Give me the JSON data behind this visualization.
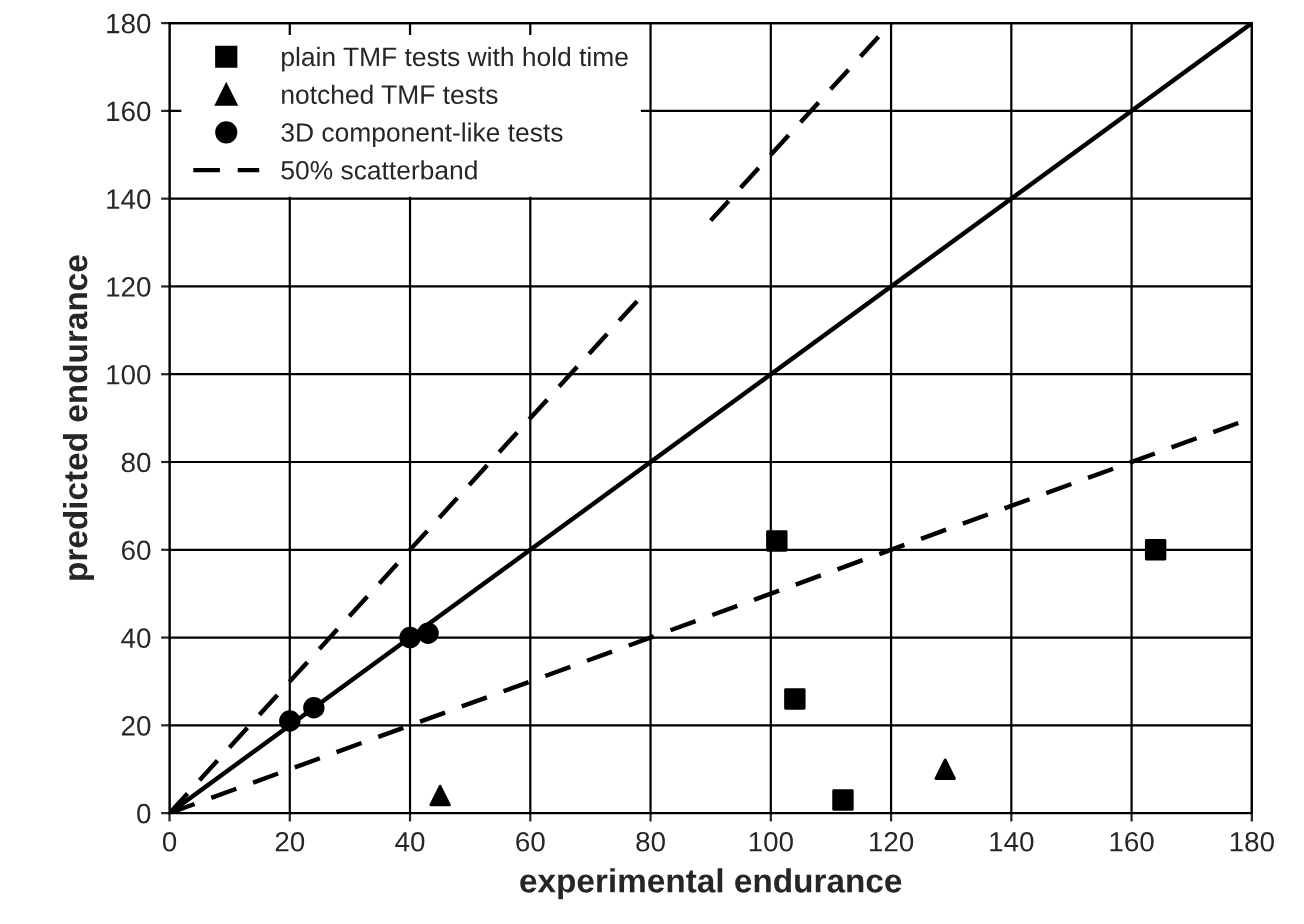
{
  "chart_data": {
    "type": "scatter",
    "xlabel": "experimental endurance",
    "ylabel": "predicted endurance",
    "xlim": [
      0,
      180
    ],
    "ylim": [
      0,
      180
    ],
    "xticks": [
      0,
      20,
      40,
      60,
      80,
      100,
      120,
      140,
      160,
      180
    ],
    "yticks": [
      0,
      20,
      40,
      60,
      80,
      100,
      120,
      140,
      160,
      180
    ],
    "grid": true,
    "legend": "top left",
    "series": [
      {
        "name": "plain TMF tests with hold time",
        "color": "#000000",
        "marker": "square",
        "x": [
          101,
          104,
          112,
          164
        ],
        "values": [
          62,
          26,
          3,
          60
        ]
      },
      {
        "name": "notched TMF tests",
        "color": "#000000",
        "marker": "triangle",
        "x": [
          45,
          129
        ],
        "values": [
          4,
          10
        ]
      },
      {
        "name": "3D component-like tests",
        "color": "#000000",
        "marker": "circle",
        "x": [
          20,
          24,
          40,
          43
        ],
        "values": [
          21,
          24,
          40,
          41
        ]
      },
      {
        "name": "50% scatterband",
        "type": "line",
        "line_style": "dashed",
        "color": "#000000",
        "marker": "none",
        "x": [
          0,
          80,
          85,
          90,
          120
        ],
        "values": [
          0,
          120,
          null,
          135,
          180
        ]
      },
      {
        "type": "line",
        "line_style": "dashed",
        "color": "#000000",
        "marker": "none",
        "x": [
          0,
          180
        ],
        "values": [
          0,
          90
        ]
      },
      {
        "type": "line",
        "line_style": "solid",
        "color": "#000000",
        "marker": "none",
        "x": [
          0,
          180
        ],
        "values": [
          0,
          180
        ]
      }
    ]
  }
}
